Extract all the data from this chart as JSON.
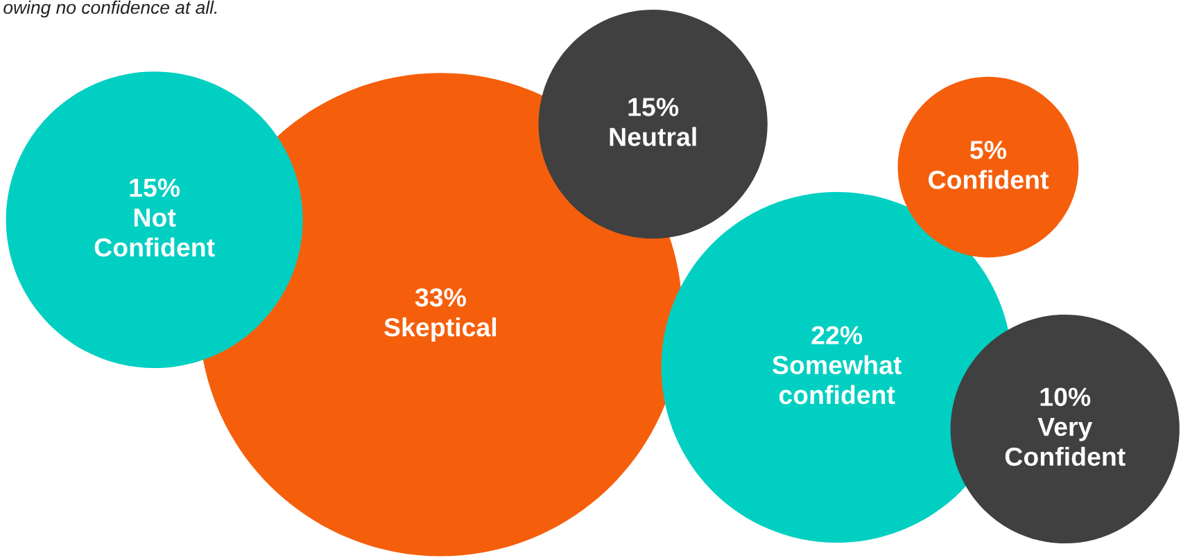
{
  "chart_data": {
    "type": "other",
    "annotations": [
      "owing no confidence at all."
    ],
    "categories": [
      "Not Confident",
      "Skeptical",
      "Neutral",
      "Confident",
      "Somewhat confident",
      "Very Confident"
    ],
    "values": [
      15,
      33,
      15,
      5,
      22,
      10
    ],
    "value_labels": [
      "15%",
      "33%",
      "15%",
      "5%",
      "22%",
      "10%"
    ],
    "colors": [
      "#00cfc1",
      "#f55f0c",
      "#404040",
      "#f55f0c",
      "#00cfc1",
      "#404040"
    ]
  }
}
